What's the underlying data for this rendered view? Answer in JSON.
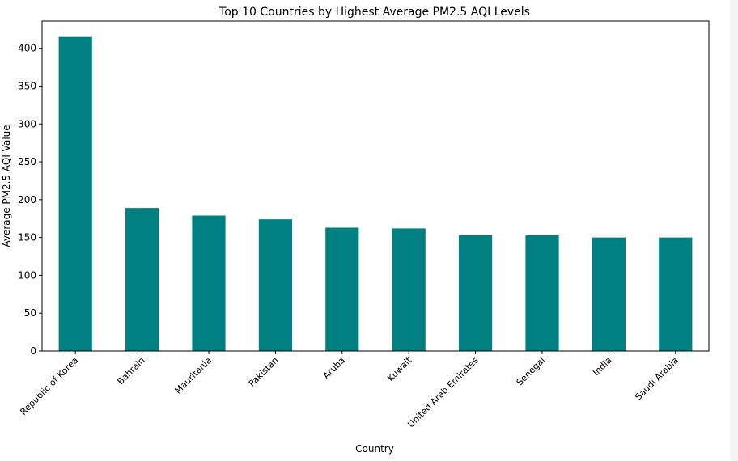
{
  "chart_data": {
    "type": "bar",
    "title": "Top 10 Countries by Highest Average PM2.5 AQI Levels",
    "xlabel": "Country",
    "ylabel": "Average PM2.5 AQI Value",
    "categories": [
      "Republic of Korea",
      "Bahrain",
      "Mauritania",
      "Pakistan",
      "Aruba",
      "Kuwait",
      "United Arab Emirates",
      "Senegal",
      "India",
      "Saudi Arabia"
    ],
    "values": [
      415,
      189,
      179,
      174,
      163,
      162,
      153,
      153,
      150,
      150
    ],
    "yticks": [
      0,
      50,
      100,
      150,
      200,
      250,
      300,
      350,
      400
    ],
    "ylim": [
      0,
      436
    ],
    "bar_color": "#008080",
    "grid": false,
    "legend": "none"
  }
}
